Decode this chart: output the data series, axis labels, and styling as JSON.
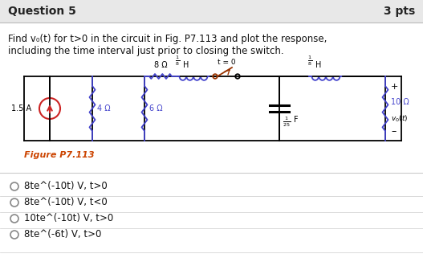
{
  "title": "Question 5",
  "pts": "3 pts",
  "q_line1": "Find v₀(t) for t>0 in the circuit in Fig. P7.113 and plot the response,",
  "q_line2": "including the time interval just prior to closing the switch.",
  "figure_label": "Figure P7.113",
  "options": [
    "8te^(-10t) V, t>0",
    "8te^(-10t) V, t<0",
    "10te^(-10t) V, t>0",
    "8te^(-6t) V, t>0"
  ],
  "white_bg": "#ffffff",
  "header_bg": "#e8e8e8",
  "circuit_color": "#000000",
  "resistor_color": "#4444cc",
  "source_color": "#cc2222",
  "switch_color": "#993300",
  "figure_label_color": "#cc4400",
  "option_circle_color": "#888888",
  "sep_color": "#cccccc",
  "header_text_color": "#222222",
  "body_text_color": "#111111"
}
